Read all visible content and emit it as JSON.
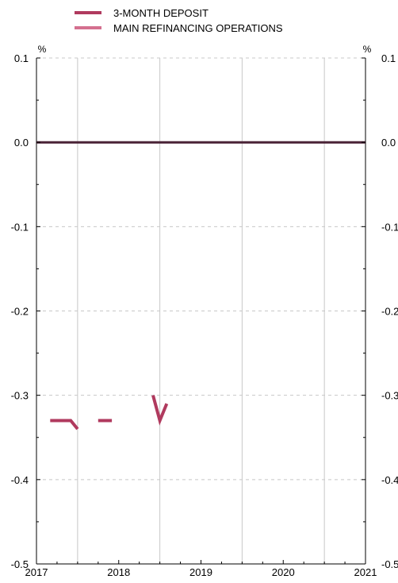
{
  "chart_data": {
    "type": "line",
    "title": "",
    "xlabel": "",
    "ylabel": "",
    "y_unit_left": "%",
    "y_unit_right": "%",
    "ylim": [
      -0.5,
      0.1
    ],
    "yticks": [
      {
        "value": 0.1,
        "label": "0.1"
      },
      {
        "value": 0.0,
        "label": "0.0"
      },
      {
        "value": -0.1,
        "label": "-0.1"
      },
      {
        "value": -0.2,
        "label": "-0.2"
      },
      {
        "value": -0.3,
        "label": "-0.3"
      },
      {
        "value": -0.4,
        "label": "-0.4"
      },
      {
        "value": -0.5,
        "label": "-0.5"
      }
    ],
    "xlim": [
      "2017-01",
      "2021-01"
    ],
    "xticks": [
      {
        "value": "2017-01",
        "label": "2017"
      },
      {
        "value": "2018-01",
        "label": "2018"
      },
      {
        "value": "2019-01",
        "label": "2019"
      },
      {
        "value": "2020-01",
        "label": "2020"
      },
      {
        "value": "2021-01",
        "label": "2021"
      }
    ],
    "x_gridlines": [
      "2017-07",
      "2018-07",
      "2019-07",
      "2020-07"
    ],
    "grid": true,
    "legend_position": "top-center",
    "series": [
      {
        "name": "3-MONTH DEPOSIT",
        "color": "#b03a5e",
        "segments": [
          [
            [
              "2017-03",
              -0.33
            ],
            [
              "2017-06",
              -0.33
            ],
            [
              "2017-07",
              -0.34
            ]
          ],
          [
            [
              "2017-10",
              -0.33
            ],
            [
              "2017-12",
              -0.33
            ]
          ],
          [
            [
              "2018-06",
              -0.3
            ],
            [
              "2018-07",
              -0.33
            ],
            [
              "2018-08",
              -0.31
            ]
          ]
        ]
      },
      {
        "name": "MAIN REFINANCING OPERATIONS",
        "color": "#d4708f",
        "segments": [
          [
            [
              "2017-01",
              0.0
            ],
            [
              "2021-01",
              0.0
            ]
          ]
        ]
      }
    ],
    "zero_line_color": "#4a2236"
  }
}
